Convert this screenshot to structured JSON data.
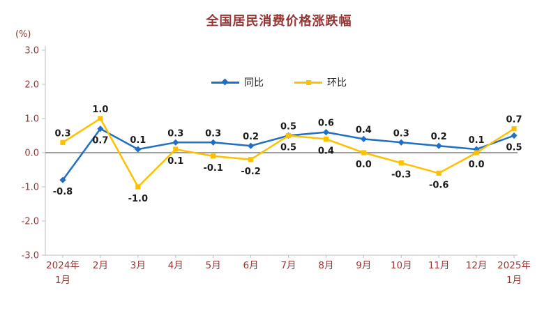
{
  "title": "全国居民消费价格涨跌幅",
  "unit_label": "(%)",
  "colors": {
    "tongbi_blue": "#1F6FC5",
    "huanbi_yellow": "#FFC000",
    "axis_text": "#963634",
    "data_label": "#1a1a1a",
    "zero_line": "#9e9e9e",
    "axis_line": "#bfbfbf"
  },
  "chart_data": {
    "type": "line",
    "title": "全国居民消费价格涨跌幅",
    "ylabel": "(%)",
    "ylim": [
      -3.0,
      3.0
    ],
    "yticks": [
      3.0,
      2.0,
      1.0,
      0.0,
      -1.0,
      -2.0,
      -3.0
    ],
    "grid": false,
    "legend_position": "top-center-inside",
    "categories": [
      [
        "2024年",
        "1月"
      ],
      [
        "2月"
      ],
      [
        "3月"
      ],
      [
        "4月"
      ],
      [
        "5月"
      ],
      [
        "6月"
      ],
      [
        "7月"
      ],
      [
        "8月"
      ],
      [
        "9月"
      ],
      [
        "10月"
      ],
      [
        "11月"
      ],
      [
        "12月"
      ],
      [
        "2025年",
        "1月"
      ]
    ],
    "series": [
      {
        "name": "同比",
        "marker": "diamond",
        "color": "#1F6FC5",
        "values": [
          -0.8,
          0.7,
          0.1,
          0.3,
          0.3,
          0.2,
          0.5,
          0.6,
          0.4,
          0.3,
          0.2,
          0.1,
          0.5
        ],
        "label_side": [
          "below",
          "below",
          "above",
          "above",
          "above",
          "above",
          "above",
          "above",
          "above",
          "above",
          "above",
          "above",
          "below"
        ]
      },
      {
        "name": "环比",
        "marker": "square",
        "color": "#FFC000",
        "values": [
          0.3,
          1.0,
          -1.0,
          0.1,
          -0.1,
          -0.2,
          0.5,
          0.4,
          0.0,
          -0.3,
          -0.6,
          0.0,
          0.7
        ],
        "label_side": [
          "above",
          "above",
          "below",
          "below",
          "below",
          "below",
          "below",
          "below",
          "below",
          "below",
          "below",
          "below",
          "above"
        ]
      }
    ]
  }
}
